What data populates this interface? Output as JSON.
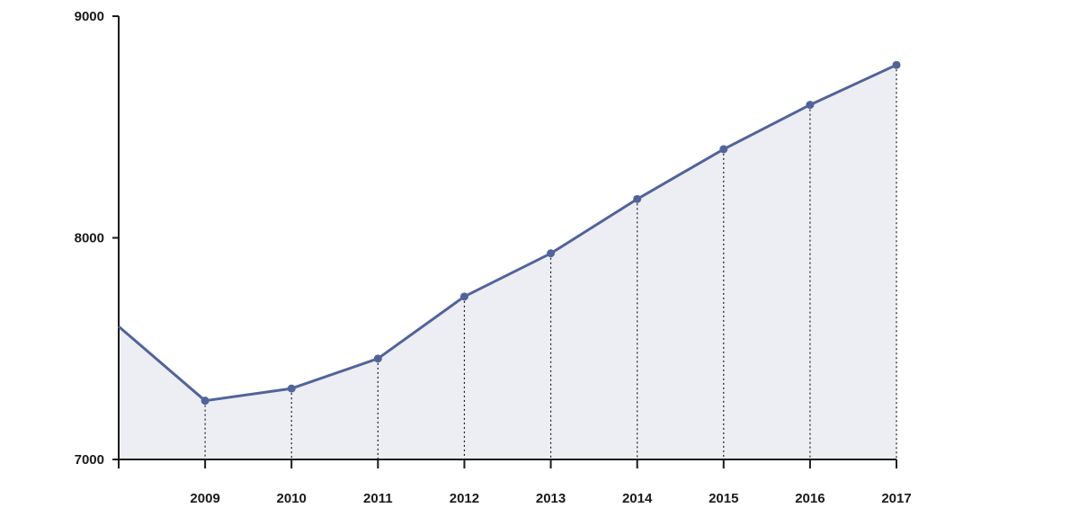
{
  "colors": {
    "line": "#52639a",
    "area": "#edeef4",
    "point": "#52639a",
    "axis": "#1a1a1a"
  },
  "chart_data": {
    "type": "area",
    "x": [
      "2008",
      "2009",
      "2010",
      "2011",
      "2012",
      "2013",
      "2014",
      "2015",
      "2016",
      "2017"
    ],
    "x_tick_labels": [
      "",
      "2009",
      "2010",
      "2011",
      "2012",
      "2013",
      "2014",
      "2015",
      "2016",
      "2017"
    ],
    "values": [
      7600,
      7265,
      7320,
      7455,
      7735,
      7930,
      8175,
      8400,
      8600,
      8780
    ],
    "markers_from_index": 1,
    "y_ticks": [
      7000,
      8000,
      9000
    ],
    "y_tick_labels": [
      "7000",
      "8000",
      "9000"
    ],
    "ylim": [
      7000,
      9000
    ],
    "title": "",
    "xlabel": "",
    "ylabel": "",
    "grid": false,
    "legend": "none"
  }
}
